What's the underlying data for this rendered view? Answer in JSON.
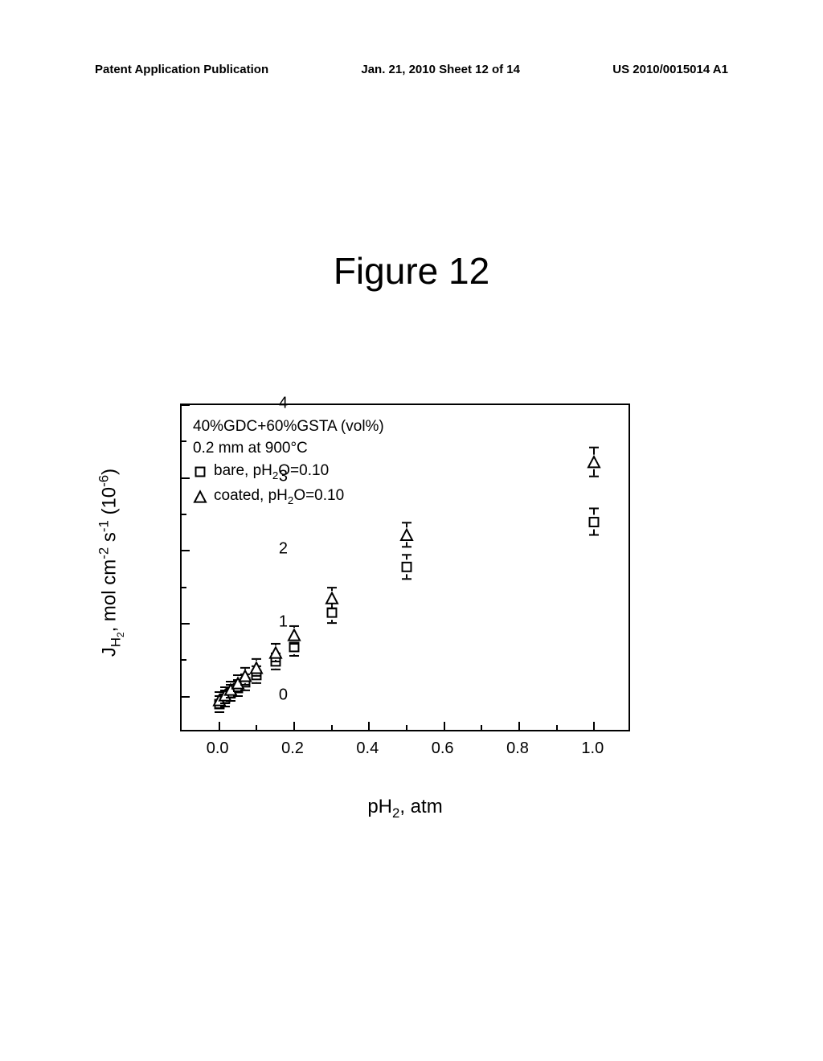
{
  "header": {
    "left": "Patent Application Publication",
    "center": "Jan. 21, 2010  Sheet 12 of 14",
    "right": "US 2010/0015014 A1"
  },
  "figure_title": "Figure 12",
  "chart": {
    "type": "scatter",
    "title_lines": [
      "40%GDC+60%GSTA (vol%)",
      "0.2 mm at 900°C"
    ],
    "legend": {
      "series": [
        {
          "marker": "square",
          "label": "bare,     pH₂O=0.10"
        },
        {
          "marker": "triangle",
          "label": "coated,  pH₂O=0.10"
        }
      ]
    },
    "xlim": [
      -0.1,
      1.1
    ],
    "ylim": [
      -0.5,
      4.0
    ],
    "x_ticks": [
      0.0,
      0.2,
      0.4,
      0.6,
      0.8,
      1.0
    ],
    "x_tick_labels": [
      "0.0",
      "0.2",
      "0.4",
      "0.6",
      "0.8",
      "1.0"
    ],
    "y_ticks": [
      0,
      1,
      2,
      3,
      4
    ],
    "y_tick_labels": [
      "0",
      "1",
      "2",
      "3",
      "4"
    ],
    "xlabel_html": "pH<sub>2</sub>, atm",
    "ylabel_html": "J<sub>H<sub>2</sub></sub>, mol cm<sup>-2</sup> s<sup>-1</sup> (10<sup>-6</sup>)",
    "marker_size": 14,
    "marker_stroke": "#000000",
    "marker_fill": "#ffffff",
    "error_color": "#000000",
    "background_color": "#ffffff",
    "series_square": [
      {
        "x": 0.0,
        "y": -0.1,
        "err": 0.08
      },
      {
        "x": 0.015,
        "y": -0.03,
        "err": 0.08
      },
      {
        "x": 0.03,
        "y": 0.05,
        "err": 0.08
      },
      {
        "x": 0.05,
        "y": 0.12,
        "err": 0.08
      },
      {
        "x": 0.07,
        "y": 0.2,
        "err": 0.09
      },
      {
        "x": 0.1,
        "y": 0.3,
        "err": 0.09
      },
      {
        "x": 0.15,
        "y": 0.48,
        "err": 0.09
      },
      {
        "x": 0.2,
        "y": 0.68,
        "err": 0.1
      },
      {
        "x": 0.3,
        "y": 1.15,
        "err": 0.12
      },
      {
        "x": 0.5,
        "y": 1.78,
        "err": 0.14
      },
      {
        "x": 1.0,
        "y": 2.4,
        "err": 0.16
      }
    ],
    "series_triangle": [
      {
        "x": 0.0,
        "y": -0.05,
        "err": 0.08
      },
      {
        "x": 0.015,
        "y": 0.02,
        "err": 0.08
      },
      {
        "x": 0.03,
        "y": 0.1,
        "err": 0.08
      },
      {
        "x": 0.05,
        "y": 0.18,
        "err": 0.08
      },
      {
        "x": 0.07,
        "y": 0.28,
        "err": 0.09
      },
      {
        "x": 0.1,
        "y": 0.4,
        "err": 0.09
      },
      {
        "x": 0.15,
        "y": 0.6,
        "err": 0.1
      },
      {
        "x": 0.2,
        "y": 0.85,
        "err": 0.1
      },
      {
        "x": 0.3,
        "y": 1.35,
        "err": 0.12
      },
      {
        "x": 0.5,
        "y": 2.22,
        "err": 0.14
      },
      {
        "x": 1.0,
        "y": 3.22,
        "err": 0.18
      }
    ]
  }
}
